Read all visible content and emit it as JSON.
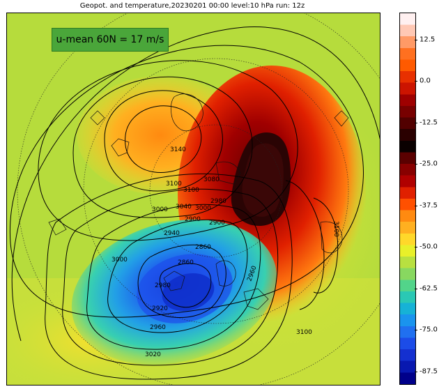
{
  "title": "Geopot. and temperature,20230201 00:00 level:10 hPa run: 12z",
  "info_box": "u-mean 60N = 17 m/s",
  "colorbar": {
    "labels": [
      "12.5",
      "0.0",
      "-12.5",
      "-25.0",
      "-37.5",
      "-50.0",
      "-62.5",
      "-75.0",
      "-87.5"
    ],
    "colors": [
      "#fff0f0",
      "#ffc8b4",
      "#ff9a66",
      "#ff7020",
      "#ff5a00",
      "#e83000",
      "#cc1400",
      "#9e0000",
      "#780000",
      "#520000",
      "#2a0000",
      "#0a0000",
      "#5a0000",
      "#880000",
      "#b00000",
      "#e02000",
      "#ff5000",
      "#ff8a10",
      "#ffb020",
      "#ffd82a",
      "#e8f02a",
      "#b8e040",
      "#88d860",
      "#52d48a",
      "#2ac8b4",
      "#16b2d6",
      "#1a94ee",
      "#2070f0",
      "#1c4ce8",
      "#1430d0",
      "#0818b0",
      "#00008a"
    ]
  },
  "contour_labels": [
    "3140",
    "3100",
    "3100",
    "3080",
    "3040",
    "3000",
    "3000",
    "2980",
    "2900",
    "2900",
    "2940",
    "2860",
    "2860",
    "2980",
    "2920",
    "2960",
    "3000",
    "3020",
    "3100",
    "3100",
    "2960"
  ]
}
